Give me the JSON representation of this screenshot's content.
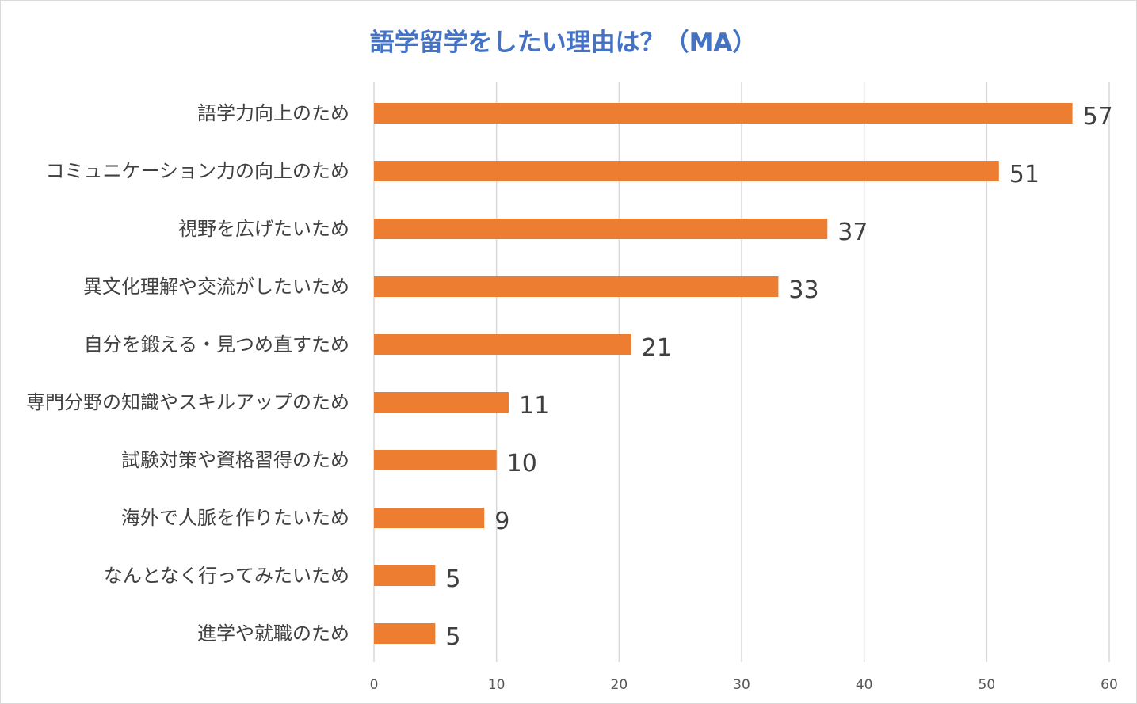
{
  "colors": {
    "bar": "#ED7D31",
    "title": "#4472C4",
    "grid": "#d9d9d9",
    "label": "#404040",
    "tick": "#595959"
  },
  "chart_data": {
    "type": "bar",
    "orientation": "horizontal",
    "title": "語学留学をしたい理由は？（MA）",
    "xlabel": "",
    "ylabel": "",
    "xlim": [
      0,
      60
    ],
    "x_ticks": [
      "0",
      "10",
      "20",
      "30",
      "40",
      "50",
      "60"
    ],
    "grid": "vertical",
    "legend": "none",
    "categories": [
      "語学力向上のため",
      "コミュニケーション力の向上のため",
      "視野を広げたいため",
      "異文化理解や交流がしたいため",
      "自分を鍛える・見つめ直すため",
      "専門分野の知識やスキルアップのため",
      "試験対策や資格習得のため",
      "海外で人脈を作りたいため",
      "なんとなく行ってみたいため",
      "進学や就職のため"
    ],
    "values": [
      57,
      51,
      37,
      33,
      21,
      11,
      10,
      9,
      5,
      5
    ],
    "value_labels": [
      "57",
      "51",
      "37",
      "33",
      "21",
      "11",
      "10",
      "9",
      "5",
      "5"
    ]
  }
}
